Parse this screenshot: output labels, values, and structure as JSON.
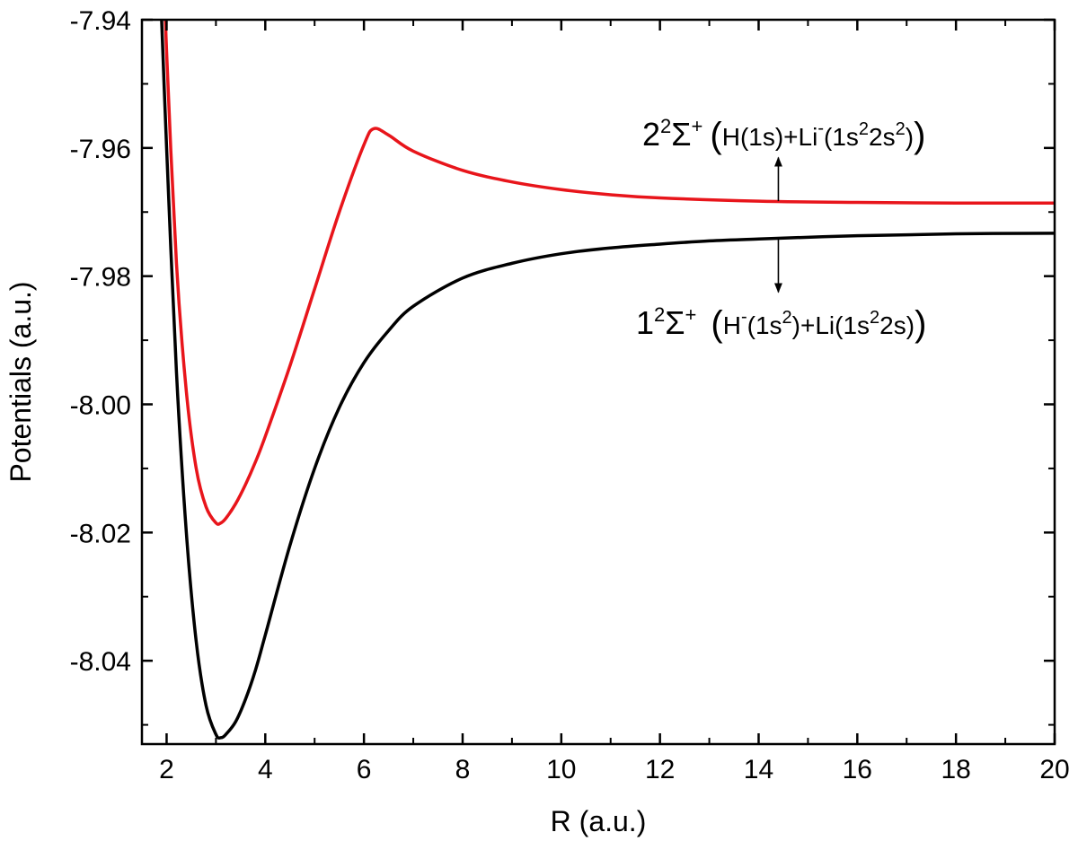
{
  "chart_data": {
    "type": "line",
    "xlabel": "R (a.u.)",
    "ylabel": "Potentials (a.u.)",
    "xlim": [
      1.5,
      20
    ],
    "ylim": [
      -8.053,
      -7.94
    ],
    "xticks": [
      2,
      4,
      6,
      8,
      10,
      12,
      14,
      16,
      18,
      20
    ],
    "xtick_labels": [
      "2",
      "4",
      "6",
      "8",
      "10",
      "12",
      "14",
      "16",
      "18",
      "20"
    ],
    "yticks": [
      -7.94,
      -7.96,
      -7.98,
      -8.0,
      -8.02,
      -8.04
    ],
    "ytick_labels": [
      "-7.94",
      "-7.96",
      "-7.98",
      "-8.00",
      "-8.02",
      "-8.04"
    ],
    "grid": false,
    "series": [
      {
        "color": "#e8151b",
        "x": [
          1.9,
          2.0,
          2.2,
          2.4,
          2.6,
          2.8,
          3.0,
          3.1,
          3.2,
          3.4,
          3.6,
          3.8,
          4.0,
          4.5,
          5.0,
          5.5,
          6.0,
          6.2,
          6.5,
          7.0,
          8.0,
          9.0,
          10.0,
          11.0,
          12.0,
          14.0,
          16.0,
          18.0,
          20.0
        ],
        "y": [
          -7.92,
          -7.945,
          -7.978,
          -7.998,
          -8.01,
          -8.016,
          -8.0185,
          -8.0185,
          -8.0178,
          -8.0155,
          -8.0125,
          -8.009,
          -8.005,
          -7.994,
          -7.982,
          -7.97,
          -7.9595,
          -7.957,
          -7.958,
          -7.9605,
          -7.9635,
          -7.9653,
          -7.9665,
          -7.9673,
          -7.9678,
          -7.9683,
          -7.9685,
          -7.9686,
          -7.9686
        ]
      },
      {
        "color": "#000000",
        "x": [
          1.85,
          2.0,
          2.2,
          2.4,
          2.6,
          2.8,
          3.0,
          3.1,
          3.2,
          3.4,
          3.6,
          3.8,
          4.0,
          4.5,
          5.0,
          5.5,
          6.0,
          6.5,
          7.0,
          8.0,
          9.0,
          10.0,
          11.0,
          12.0,
          13.0,
          14.0,
          16.0,
          18.0,
          20.0
        ],
        "y": [
          -7.93,
          -7.96,
          -7.995,
          -8.02,
          -8.037,
          -8.047,
          -8.0515,
          -8.052,
          -8.0515,
          -8.0495,
          -8.046,
          -8.0415,
          -8.036,
          -8.022,
          -8.01,
          -8.0005,
          -7.9935,
          -7.9885,
          -7.9847,
          -7.9803,
          -7.978,
          -7.9765,
          -7.9756,
          -7.975,
          -7.9745,
          -7.9742,
          -7.9737,
          -7.9734,
          -7.9733
        ]
      }
    ],
    "annotations": {
      "upper": {
        "term": "2",
        "term_sup": "2",
        "symbol": "Σ",
        "symbol_sup": "+",
        "config": "H(1s)+Li",
        "config_sup": "-",
        "config_rest": "(1s",
        "config_rest_sup": "2",
        "config_rest2": "2s",
        "config_rest2_sup": "2",
        "config_close": ")",
        "arrow_x": 14.4,
        "arrow_from_y": -7.9683,
        "arrow_to_y": -7.9615
      },
      "lower": {
        "term": "1",
        "term_sup": "2",
        "symbol": "Σ",
        "symbol_sup": "+",
        "config": "H",
        "config_sup": "-",
        "config_mid": "(1s",
        "config_mid_sup": "2",
        "config_mid2": ")+Li(1s",
        "config_mid2_sup": "2",
        "config_end": "2s)",
        "arrow_x": 14.4,
        "arrow_from_y": -7.9742,
        "arrow_to_y": -7.9825
      }
    }
  }
}
